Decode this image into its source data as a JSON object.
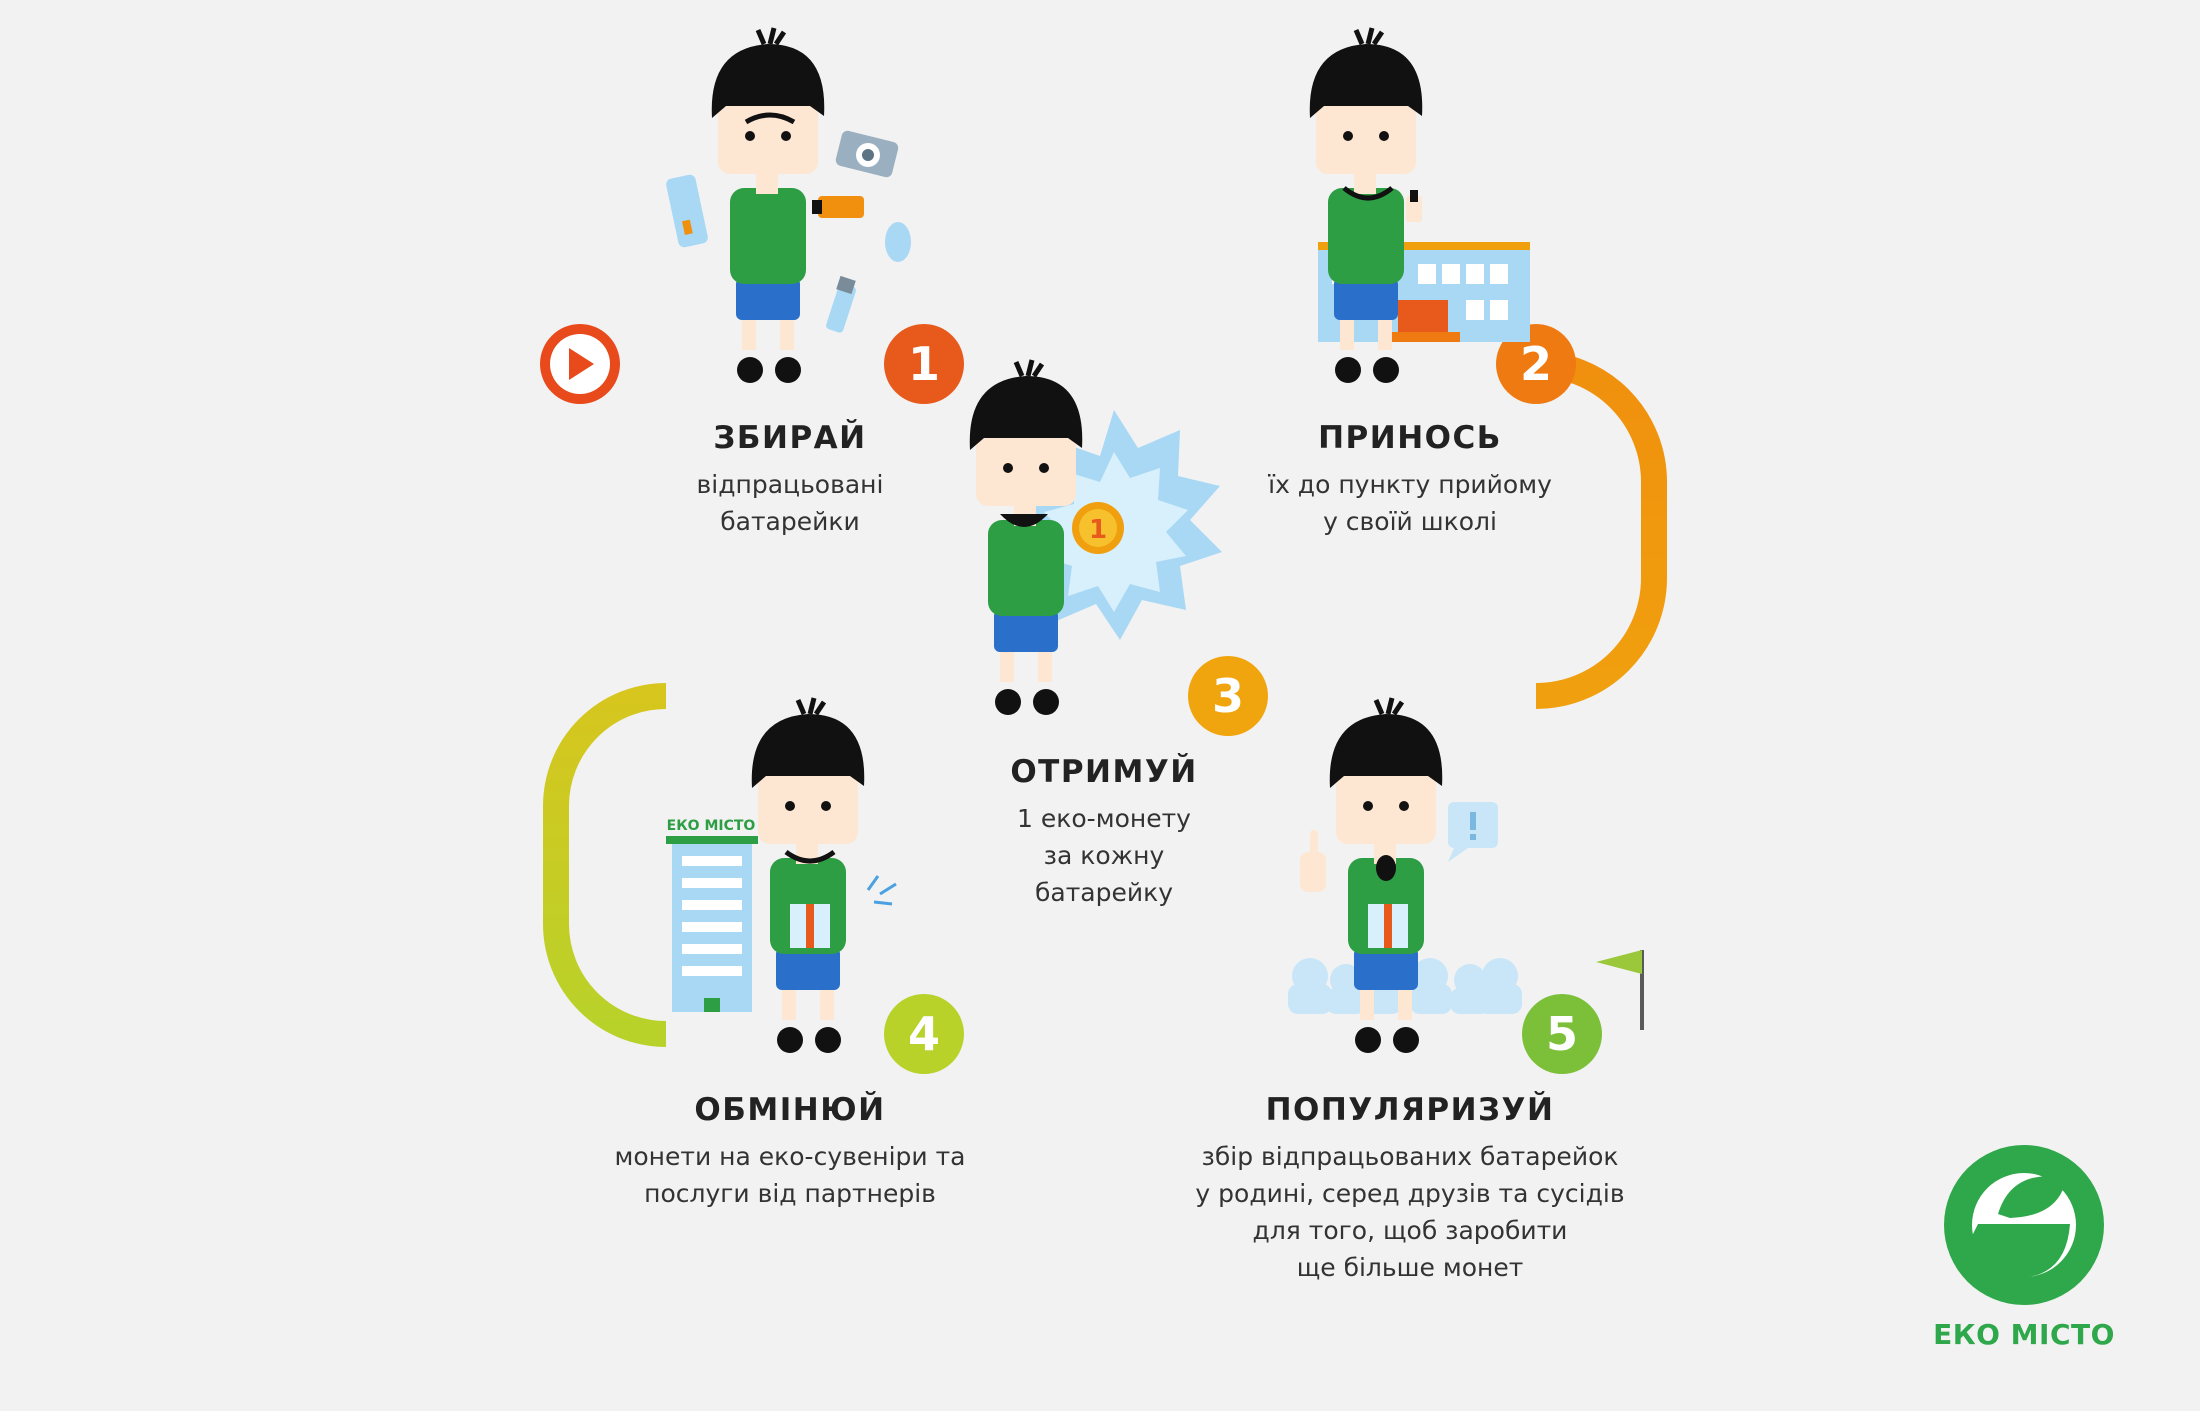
{
  "steps": [
    {
      "number": "1",
      "title": "ЗБИРАЙ",
      "desc": [
        "відпрацьовані",
        "батарейки"
      ]
    },
    {
      "number": "2",
      "title": "ПРИНОСЬ",
      "desc": [
        "їх до пункту прийому",
        "у своїй школі"
      ]
    },
    {
      "number": "3",
      "title": "ОТРИМУЙ",
      "desc": [
        "1 еко-монету",
        "за кожну",
        "батарейку"
      ]
    },
    {
      "number": "4",
      "title": "ОБМІНЮЙ",
      "desc": [
        "монети на еко-сувеніри та",
        "послуги від партнерів"
      ]
    },
    {
      "number": "5",
      "title": "ПОПУЛЯРИЗУЙ",
      "desc": [
        "збір відпрацьованих батарейок",
        "у родині, серед друзів та сусідів",
        "для того, щоб заробити",
        "ще більше монет"
      ]
    }
  ],
  "building_sign": "ЕКО МІСТО",
  "coin_label": "1",
  "logo": {
    "name": "ЕКО МІСТО",
    "color": "#2ea84a"
  },
  "colors": {
    "path_start": "#e84a1c",
    "path_orange": "#f0900e",
    "path_yellow": "#dcc21a",
    "path_lime": "#b5d22a",
    "path_green": "#3daa55",
    "shirt": "#2e9e45",
    "shorts": "#2a6fc9",
    "hair": "#111111",
    "skin": "#fde7d2",
    "light_blue": "#a9d8f5",
    "background": "#f2f2f2"
  },
  "icons": [
    "play-icon",
    "remote-icon",
    "camera-icon",
    "flashlight-icon",
    "mouse-icon",
    "battery-icon",
    "school-icon",
    "coin-icon",
    "starburst-icon",
    "office-building-icon",
    "gift-icon",
    "flag-icon",
    "speech-bubble-icon",
    "crowd-icon"
  ]
}
